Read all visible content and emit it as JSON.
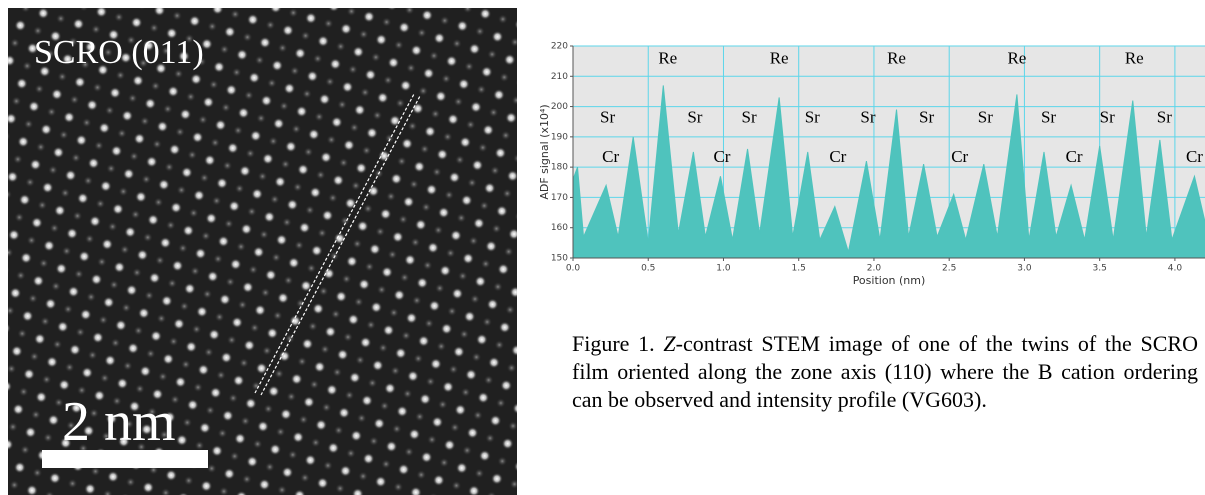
{
  "image": {
    "label": "SCRO (011)",
    "scale_bar": "2 nm"
  },
  "chart_data": {
    "type": "area",
    "xlabel": "Position (nm)",
    "ylabel": "ADF signal (x10⁴)",
    "x": [
      0.0,
      0.03,
      0.07,
      0.22,
      0.3,
      0.4,
      0.5,
      0.6,
      0.7,
      0.8,
      0.88,
      0.98,
      1.06,
      1.16,
      1.24,
      1.37,
      1.46,
      1.56,
      1.64,
      1.74,
      1.83,
      1.95,
      2.04,
      2.15,
      2.23,
      2.33,
      2.42,
      2.53,
      2.61,
      2.73,
      2.82,
      2.95,
      3.03,
      3.13,
      3.21,
      3.31,
      3.4,
      3.5,
      3.59,
      3.72,
      3.81,
      3.9,
      3.98,
      4.13,
      4.2
    ],
    "series": [
      {
        "color": "#4fc3bd",
        "values": [
          176,
          180,
          157,
          174,
          157,
          190,
          155,
          207,
          158,
          185,
          157,
          177,
          156,
          186,
          158,
          203,
          157,
          185,
          156,
          167,
          152,
          182,
          156,
          199,
          157,
          181,
          157,
          171,
          156,
          181,
          157,
          204,
          156,
          185,
          157,
          174,
          156,
          187,
          156,
          202,
          157,
          189,
          156,
          177,
          162
        ]
      }
    ],
    "xlim": [
      0,
      4.2
    ],
    "ylim": [
      150,
      220
    ],
    "xticks": [
      {
        "value": 0,
        "label": "0.0"
      },
      0.5,
      {
        "value": 1,
        "label": "1.0"
      },
      1.5,
      {
        "value": 2,
        "label": "2.0"
      },
      2.5,
      {
        "value": 3,
        "label": "3.0"
      },
      3.5,
      {
        "value": 4,
        "label": "4.0"
      }
    ],
    "yticks": [
      150,
      160,
      170,
      180,
      190,
      200,
      210,
      220
    ],
    "grid": true,
    "grid_color": "#5cd6ea",
    "background": "#e6e6e6",
    "annotations": [
      {
        "text": "Re",
        "x": 0.63,
        "y": 215.5
      },
      {
        "text": "Re",
        "x": 1.37,
        "y": 215.5
      },
      {
        "text": "Re",
        "x": 2.15,
        "y": 215.5
      },
      {
        "text": "Re",
        "x": 2.95,
        "y": 215.5
      },
      {
        "text": "Re",
        "x": 3.73,
        "y": 215.5
      },
      {
        "text": "Sr",
        "x": 0.23,
        "y": 196
      },
      {
        "text": "Sr",
        "x": 0.81,
        "y": 196
      },
      {
        "text": "Sr",
        "x": 1.17,
        "y": 196
      },
      {
        "text": "Sr",
        "x": 1.59,
        "y": 196
      },
      {
        "text": "Sr",
        "x": 1.96,
        "y": 196
      },
      {
        "text": "Sr",
        "x": 2.35,
        "y": 196
      },
      {
        "text": "Sr",
        "x": 2.74,
        "y": 196
      },
      {
        "text": "Sr",
        "x": 3.16,
        "y": 196
      },
      {
        "text": "Sr",
        "x": 3.55,
        "y": 196
      },
      {
        "text": "Sr",
        "x": 3.93,
        "y": 196
      },
      {
        "text": "Cr",
        "x": 0.25,
        "y": 183
      },
      {
        "text": "Cr",
        "x": 0.99,
        "y": 183
      },
      {
        "text": "Cr",
        "x": 1.76,
        "y": 183
      },
      {
        "text": "Cr",
        "x": 2.57,
        "y": 183
      },
      {
        "text": "Cr",
        "x": 3.33,
        "y": 183
      },
      {
        "text": "Cr",
        "x": 4.13,
        "y": 183
      }
    ]
  },
  "caption": {
    "parts": [
      "Figure 1. ",
      "Z",
      "-contrast STEM image of one of the twins of the SCRO film oriented along the zone axis (110) where the B cation ordering can be observed and intensity profile (VG603)."
    ]
  }
}
